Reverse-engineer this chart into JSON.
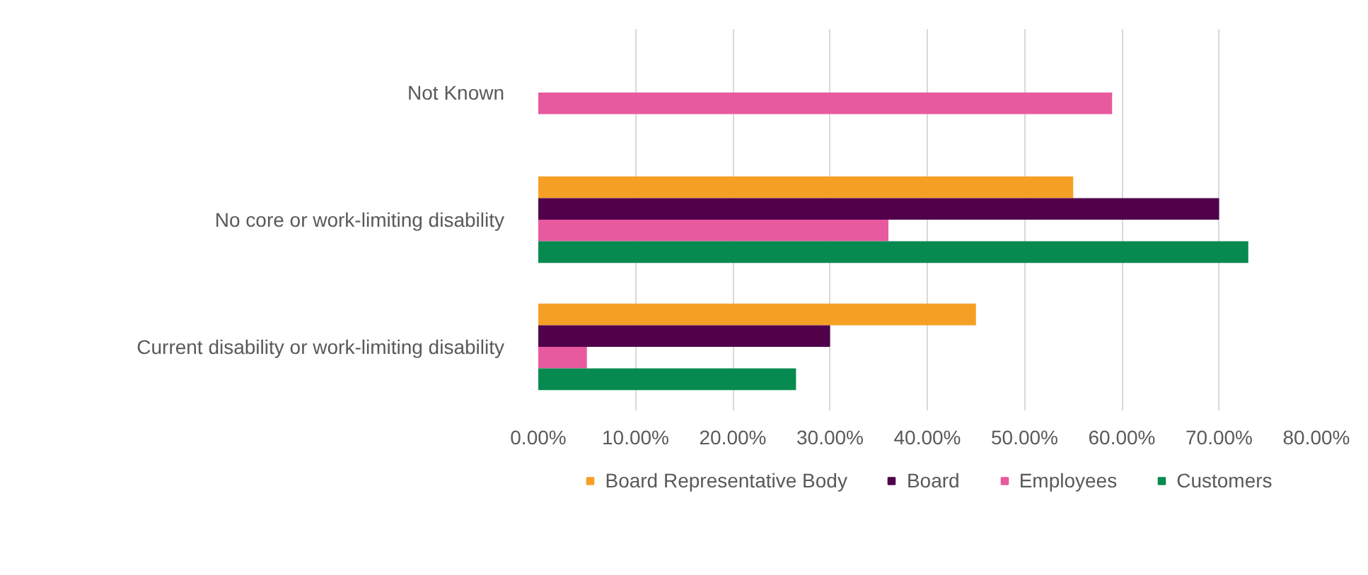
{
  "chart_data": {
    "type": "bar",
    "orientation": "horizontal",
    "categories": [
      "Not Known",
      "No core or work-limiting disability",
      "Current disability or work-limiting disability"
    ],
    "series": [
      {
        "name": "Board Representative Body",
        "color": "#f5a024",
        "values": [
          null,
          55,
          45
        ]
      },
      {
        "name": "Board",
        "color": "#51004a",
        "values": [
          null,
          70,
          30
        ]
      },
      {
        "name": "Employees",
        "color": "#e85a9e",
        "values": [
          59,
          36,
          5
        ]
      },
      {
        "name": "Customers",
        "color": "#078a50",
        "values": [
          null,
          73,
          26.5
        ]
      }
    ],
    "xlim": [
      0,
      80
    ],
    "xticks": [
      {
        "value": 0,
        "label": "0.00%"
      },
      {
        "value": 10,
        "label": "10.00%"
      },
      {
        "value": 20,
        "label": "20.00%"
      },
      {
        "value": 30,
        "label": "30.00%"
      },
      {
        "value": 40,
        "label": "40.00%"
      },
      {
        "value": 50,
        "label": "50.00%"
      },
      {
        "value": 60,
        "label": "60.00%"
      },
      {
        "value": 70,
        "label": "70.00%"
      },
      {
        "value": 80,
        "label": "80.00%"
      }
    ],
    "grid": "x",
    "legend": "bottom"
  }
}
